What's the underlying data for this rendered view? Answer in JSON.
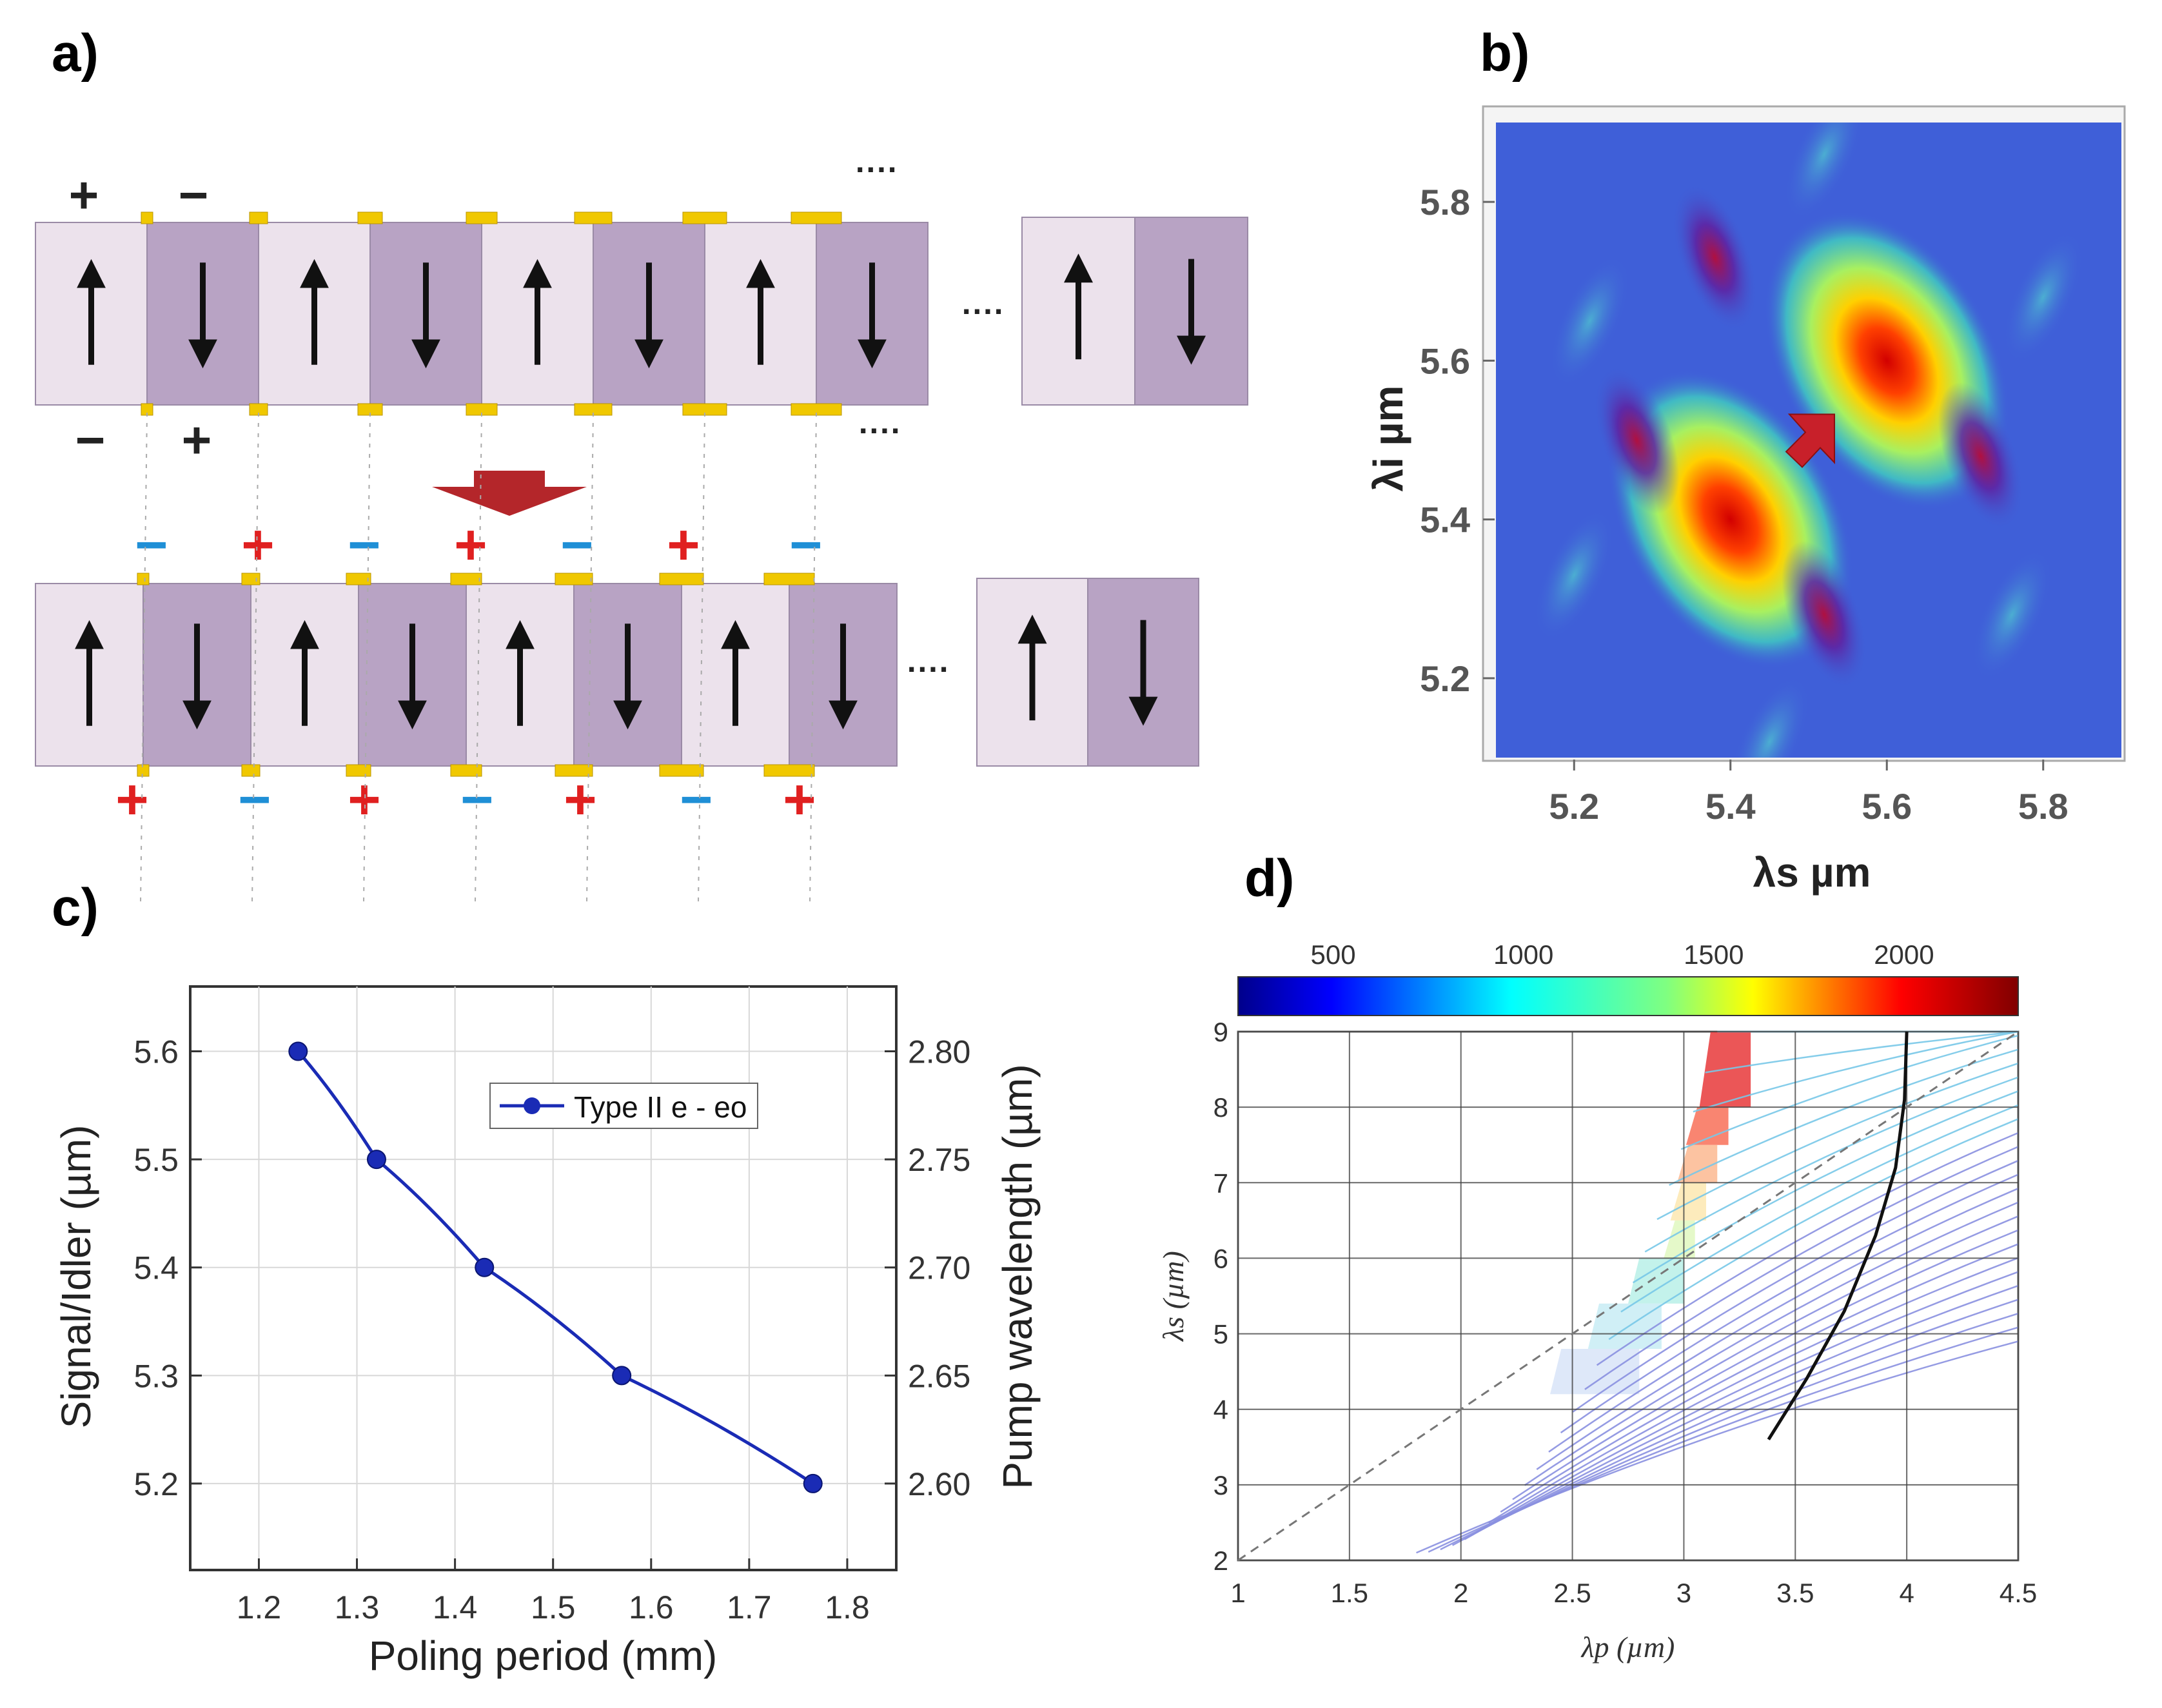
{
  "panels": {
    "a": {
      "label": "a)",
      "top_row_signs": [
        "+",
        "−"
      ],
      "top_row_bottom_signs": [
        "−",
        "+"
      ],
      "ellipsis": "····",
      "mid_top_signs": [
        "−",
        "+",
        "−",
        "+",
        "−",
        "+",
        "−"
      ],
      "mid_bottom_signs": [
        "+",
        "−",
        "+",
        "−",
        "+",
        "−",
        "+"
      ]
    },
    "b": {
      "label": "b)",
      "xlabel": "λs µm",
      "ylabel": "λi µm"
    },
    "c": {
      "label": "c)",
      "legend": "Type II e - eo",
      "xlabel": "Poling period (mm)",
      "ylabel_left": "Signal/Idler (µm)",
      "ylabel_right": "Pump wavelength (µm)"
    },
    "d": {
      "label": "d)",
      "xlabel": "λp (µm)",
      "ylabel": "λs (µm)",
      "colorbar_ticks": [
        "500",
        "1000",
        "1500",
        "2000"
      ]
    }
  },
  "chart_data": [
    {
      "id": "b",
      "type": "heatmap",
      "title": "",
      "xlabel": "λs µm",
      "ylabel": "λi µm",
      "xlim": [
        5.1,
        5.9
      ],
      "ylim": [
        5.1,
        5.9
      ],
      "xticks": [
        "5.2",
        "5.4",
        "5.6",
        "5.8"
      ],
      "yticks": [
        "5.2",
        "5.4",
        "5.6",
        "5.8"
      ],
      "peaks": [
        {
          "x": 5.4,
          "y": 5.4,
          "level": "high"
        },
        {
          "x": 5.6,
          "y": 5.6,
          "level": "high"
        },
        {
          "x": 5.28,
          "y": 5.5,
          "level": "low"
        },
        {
          "x": 5.52,
          "y": 5.28,
          "level": "low"
        },
        {
          "x": 5.38,
          "y": 5.73,
          "level": "low"
        },
        {
          "x": 5.72,
          "y": 5.48,
          "level": "low"
        }
      ],
      "marker": {
        "x": 5.5,
        "y": 5.5,
        "shape": "arrow"
      }
    },
    {
      "id": "c",
      "type": "line",
      "xlabel": "Poling period (mm)",
      "ylabel": "Signal/Idler (µm)",
      "ylabel_right": "Pump wavelength (µm)",
      "xlim": [
        1.13,
        1.85
      ],
      "ylim": [
        5.12,
        5.66
      ],
      "ylim_right": [
        2.56,
        2.83
      ],
      "xticks": [
        "1.2",
        "1.3",
        "1.4",
        "1.5",
        "1.6",
        "1.7",
        "1.8"
      ],
      "yticks": [
        "5.2",
        "5.3",
        "5.4",
        "5.5",
        "5.6"
      ],
      "yticks_right": [
        "2.60",
        "2.65",
        "2.70",
        "2.75",
        "2.80"
      ],
      "legend": [
        "Type II e - eo"
      ],
      "series": [
        {
          "name": "Type II e - eo",
          "x": [
            1.24,
            1.32,
            1.43,
            1.57,
            1.765
          ],
          "values": [
            5.6,
            5.5,
            5.4,
            5.3,
            5.2
          ],
          "color": "#1a2bb5"
        }
      ]
    },
    {
      "id": "d",
      "type": "line",
      "xlabel": "λp (µm)",
      "ylabel": "λs (µm)",
      "xlim": [
        1,
        4.5
      ],
      "ylim": [
        2,
        9
      ],
      "xticks": [
        "1",
        "1.5",
        "2",
        "2.5",
        "3",
        "3.5",
        "4",
        "4.5"
      ],
      "yticks": [
        "2",
        "3",
        "4",
        "5",
        "6",
        "7",
        "8",
        "9"
      ],
      "colorbar": {
        "range": [
          250,
          2300
        ],
        "ticks": [
          "500",
          "1000",
          "1500",
          "2000"
        ],
        "colormap": "jet"
      },
      "series": [
        {
          "name": "degeneracy",
          "style": "dashed",
          "x": [
            1,
            4.5
          ],
          "values": [
            2,
            9
          ]
        },
        {
          "name": "phase-matching",
          "style": "solid",
          "x": [
            3.38,
            3.55,
            3.72,
            3.86,
            3.95,
            3.99,
            4.0
          ],
          "values": [
            3.6,
            4.4,
            5.3,
            6.3,
            7.2,
            8.1,
            9.0
          ]
        }
      ]
    }
  ]
}
